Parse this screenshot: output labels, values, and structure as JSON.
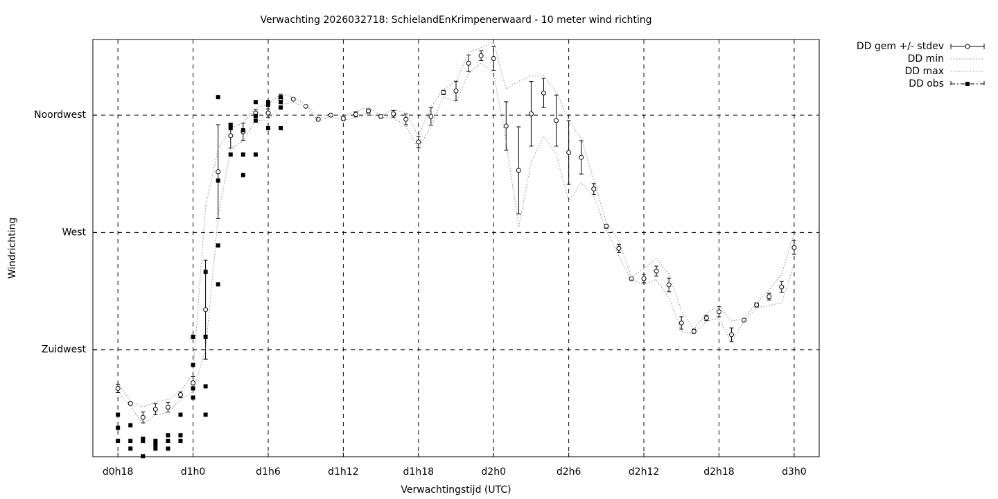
{
  "chart_data": {
    "type": "line",
    "title": "Verwachting 2026032718: SchielandEnKrimpenerwaard - 10 meter wind richting",
    "x_label": "Verwachtingstijd (UTC)",
    "y_label": "Windrichting",
    "xlim": [
      16,
      74
    ],
    "ylim": [
      184,
      344
    ],
    "xticks": [
      {
        "value": 18,
        "label": "d0h18"
      },
      {
        "value": 24,
        "label": "d1h0"
      },
      {
        "value": 30,
        "label": "d1h6"
      },
      {
        "value": 36,
        "label": "d1h12"
      },
      {
        "value": 42,
        "label": "d1h18"
      },
      {
        "value": 48,
        "label": "d2h0"
      },
      {
        "value": 54,
        "label": "d2h6"
      },
      {
        "value": 60,
        "label": "d2h12"
      },
      {
        "value": 66,
        "label": "d2h18"
      },
      {
        "value": 72,
        "label": "d3h0"
      }
    ],
    "yticks": [
      {
        "value": 225,
        "label": "Zuidwest"
      },
      {
        "value": 270,
        "label": "West"
      },
      {
        "value": 315,
        "label": "Noordwest"
      }
    ],
    "grid": true,
    "legend": "outside-top-right",
    "x": [
      18,
      19,
      20,
      21,
      22,
      23,
      24,
      25,
      26,
      27,
      28,
      29,
      30,
      31,
      32,
      33,
      34,
      35,
      36,
      37,
      38,
      39,
      40,
      41,
      42,
      43,
      44,
      45,
      46,
      47,
      48,
      49,
      50,
      51,
      52,
      53,
      54,
      55,
      56,
      57,
      58,
      59,
      60,
      61,
      62,
      63,
      64,
      65,
      66,
      67,
      68,
      69,
      70,
      71,
      72
    ],
    "series": [
      {
        "name": "DD gem +/- stdev",
        "color": "#000000",
        "values": [
          210.2,
          204.4,
          199.1,
          202.2,
          203.0,
          207.8,
          212.3,
          240.4,
          293.3,
          307.1,
          308.6,
          315.8,
          315.8,
          321.4,
          321.1,
          318.4,
          313.4,
          315.0,
          313.7,
          315.3,
          316.6,
          314.5,
          315.5,
          313.4,
          304.7,
          314.5,
          323.7,
          324.3,
          334.9,
          337.8,
          336.7,
          310.8,
          293.8,
          315.5,
          323.5,
          312.9,
          300.7,
          298.8,
          286.7,
          272.4,
          263.9,
          252.3,
          252.3,
          255.2,
          249.9,
          235.3,
          232.1,
          237.2,
          239.6,
          230.8,
          236.4,
          242.2,
          245.4,
          249.1,
          264.2
        ],
        "errors": [
          1.6,
          0.5,
          2.1,
          2.1,
          1.9,
          1.1,
          2.4,
          19,
          18,
          4.8,
          3.3,
          1.3,
          1.6,
          1.6,
          0.5,
          0.3,
          0.5,
          0.3,
          0.8,
          1.0,
          0.8,
          0.5,
          1.3,
          2.1,
          2.1,
          3.4,
          0.8,
          3.7,
          3.2,
          1.9,
          4.5,
          9.3,
          16.7,
          12.4,
          5.6,
          9.8,
          12.2,
          6.4,
          2.1,
          0.8,
          1.6,
          0.5,
          1.6,
          1.9,
          2.6,
          2.4,
          0.8,
          1.0,
          1.9,
          2.6,
          0.5,
          0.8,
          1.3,
          2.1,
          2.6
        ]
      },
      {
        "name": "DD min",
        "color": "#888888",
        "values": [
          209,
          203.5,
          196.5,
          200,
          201,
          206,
          209,
          225,
          276,
          302,
          305,
          313,
          313,
          319,
          320,
          318,
          313,
          314.5,
          313,
          314,
          315.5,
          314,
          314,
          311,
          302,
          311,
          322,
          320,
          331,
          335,
          331,
          305,
          272,
          297,
          307,
          300,
          282,
          289,
          284,
          271,
          261,
          252,
          250,
          252,
          245,
          232,
          231,
          236,
          237,
          228,
          236,
          241,
          242,
          243,
          258
        ]
      },
      {
        "name": "DD max",
        "color": "#888888",
        "values": [
          212,
          205.5,
          203,
          205,
          206,
          209,
          216,
          280,
          302,
          310,
          312,
          318,
          319,
          323,
          322,
          319,
          314,
          315.5,
          314.5,
          316.5,
          318,
          315,
          317,
          316,
          307,
          318,
          325,
          328,
          339,
          341,
          343,
          325,
          328,
          330,
          330,
          324,
          313,
          306,
          290,
          274,
          267,
          253,
          256,
          260,
          254,
          240,
          233,
          239,
          242,
          236,
          237,
          243,
          248,
          254,
          270
        ]
      },
      {
        "name": "DD obs",
        "color": "#000000",
        "x": [
          18,
          18,
          18,
          19,
          19,
          19,
          20,
          20,
          20,
          21,
          21,
          21,
          22,
          22,
          22,
          23,
          23,
          23,
          24,
          24,
          24,
          24,
          25,
          25,
          25,
          25,
          26,
          26,
          26,
          26,
          27,
          27,
          27,
          28,
          28,
          28,
          29,
          29,
          29,
          29,
          30,
          30,
          30,
          31,
          31,
          31,
          31
        ],
        "values": [
          200.1,
          195.1,
          190.1,
          196.1,
          190.1,
          187.1,
          190.9,
          190.1,
          184.2,
          190.1,
          188.7,
          187.1,
          192.2,
          190.1,
          187.1,
          200.1,
          192.2,
          190.1,
          230.0,
          219.2,
          210.2,
          206.7,
          254.9,
          230.0,
          211.0,
          200.1,
          321.9,
          289.9,
          265.0,
          250.1,
          311.3,
          310.0,
          299.9,
          309.2,
          299.9,
          292.0,
          320.0,
          314.7,
          312.9,
          299.9,
          320.0,
          319.0,
          310.0,
          321.9,
          320.0,
          317.9,
          310.0
        ]
      }
    ]
  }
}
